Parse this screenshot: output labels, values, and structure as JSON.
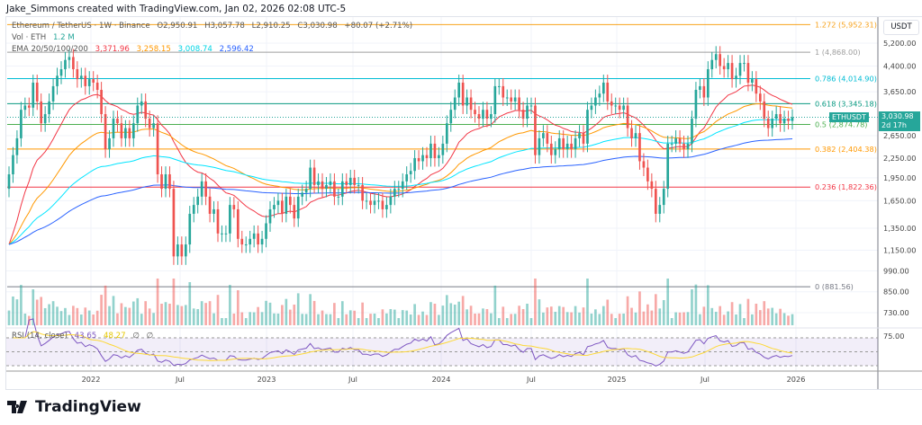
{
  "header": {
    "text": "Jake_Simmons created with TradingView.com, Jan 02, 2026 02:08 UTC-5"
  },
  "legend": {
    "symbol": "Ethereum / TetherUS · 1W · Binance",
    "o": "O2,950.91",
    "h": "H3,057.78",
    "l": "L2,910.25",
    "c": "C3,030.98",
    "change": "+80.07 (+2.71%)",
    "vol_label": "Vol · ETH",
    "vol_value": "1.2 M",
    "ema_label": "EMA 20/50/100/200",
    "ema20": "3,371.96",
    "ema50": "3,258.15",
    "ema100": "3,008.74",
    "ema200": "2,596.42",
    "rsi_label": "RSI (14, close)",
    "rsi_value": "43.65",
    "rsi_ma": "48.27",
    "rsi_extra1": "∅",
    "rsi_extra2": "∅"
  },
  "price_axis": {
    "currency": "USDT",
    "ticks": [
      "5,200.00",
      "4,400.00",
      "3,650.00",
      "2,650.00",
      "2,250.00",
      "1,950.00",
      "1,650.00",
      "1,350.00",
      "1,150.00",
      "990.00",
      "850.00",
      "730.00"
    ],
    "rsi_tick": "75.00",
    "last_symbol": "ETHUSDT",
    "last_price": "3,030.98",
    "countdown": "2d 17h"
  },
  "time_axis": [
    "2022",
    "Jul",
    "2023",
    "Jul",
    "2024",
    "Jul",
    "2025",
    "Jul",
    "2026"
  ],
  "fib_levels": [
    {
      "label": "1.272 (5,952.31)",
      "price": 5952.31,
      "color": "#f7a21b"
    },
    {
      "label": "1 (4,868.00)",
      "price": 4868,
      "color": "#9e9e9e"
    },
    {
      "label": "0.786 (4,014.90)",
      "price": 4014.9,
      "color": "#00bcd4"
    },
    {
      "label": "0.618 (3,345.18)",
      "price": 3345.18,
      "color": "#089981"
    },
    {
      "label": "0.5 (2,874.78)",
      "price": 2874.78,
      "color": "#4caf50"
    },
    {
      "label": "0.382 (2,404.38)",
      "price": 2404.38,
      "color": "#ff9800"
    },
    {
      "label": "0.236 (1,822.36)",
      "price": 1822.36,
      "color": "#f23645"
    },
    {
      "label": "0 (881.56)",
      "price": 881.56,
      "color": "#787b86"
    }
  ],
  "colors": {
    "up": "#26a69a",
    "down": "#ef5350",
    "ema20": "#f23645",
    "ema50": "#ff9800",
    "ema100": "#00e5ff",
    "ema200": "#2962ff",
    "rsi": "#7e57c2",
    "rsi_ma": "#fdd835"
  },
  "brand": "TradingView",
  "chart_data": {
    "type": "candlestick",
    "interval": "1W",
    "scale": "log",
    "ylim": [
      700,
      5600
    ],
    "x_start": "2021-07",
    "x_end": "2026-01-02",
    "closes": [
      2000,
      2300,
      2600,
      3200,
      3300,
      3250,
      3900,
      3400,
      2900,
      3100,
      3400,
      3800,
      4100,
      4300,
      4600,
      4700,
      4300,
      4000,
      4100,
      3800,
      4000,
      3900,
      3700,
      3100,
      2400,
      2600,
      3000,
      2900,
      2600,
      2800,
      2600,
      2900,
      3300,
      3400,
      3000,
      2800,
      2900,
      2000,
      1800,
      2000,
      1800,
      1100,
      1200,
      1100,
      1200,
      1500,
      1600,
      1700,
      1900,
      1700,
      1500,
      1550,
      1300,
      1300,
      1300,
      1600,
      1550,
      1250,
      1200,
      1200,
      1250,
      1300,
      1200,
      1250,
      1400,
      1550,
      1600,
      1650,
      1500,
      1700,
      1600,
      1450,
      1700,
      1750,
      1800,
      2100,
      1850,
      1900,
      1800,
      1850,
      1900,
      1700,
      1700,
      1900,
      1850,
      1950,
      1850,
      1850,
      1650,
      1650,
      1600,
      1650,
      1650,
      1550,
      1600,
      1700,
      1800,
      1800,
      1900,
      2000,
      2050,
      2250,
      2200,
      2300,
      2250,
      2500,
      2250,
      2300,
      2500,
      2900,
      3200,
      3500,
      3900,
      3300,
      3500,
      3200,
      3100,
      3000,
      3200,
      3000,
      3100,
      3800,
      3800,
      3500,
      3500,
      3400,
      3500,
      3200,
      3000,
      3300,
      3300,
      2300,
      2600,
      2700,
      2500,
      2300,
      2400,
      2600,
      2400,
      2500,
      2400,
      2600,
      2700,
      2500,
      3200,
      3300,
      3500,
      3600,
      3900,
      3400,
      3300,
      3300,
      3200,
      3300,
      2800,
      2600,
      2700,
      2200,
      2100,
      1900,
      1800,
      1500,
      1600,
      1800,
      2500,
      2500,
      2600,
      2500,
      2400,
      2500,
      3000,
      3700,
      3800,
      3500,
      4300,
      4600,
      4800,
      4400,
      4300,
      4500,
      4000,
      4100,
      4500,
      4500,
      3900,
      4000,
      3600,
      3400,
      3000,
      2800,
      3000,
      3100,
      2900,
      3000,
      2950,
      3030.98
    ]
  }
}
